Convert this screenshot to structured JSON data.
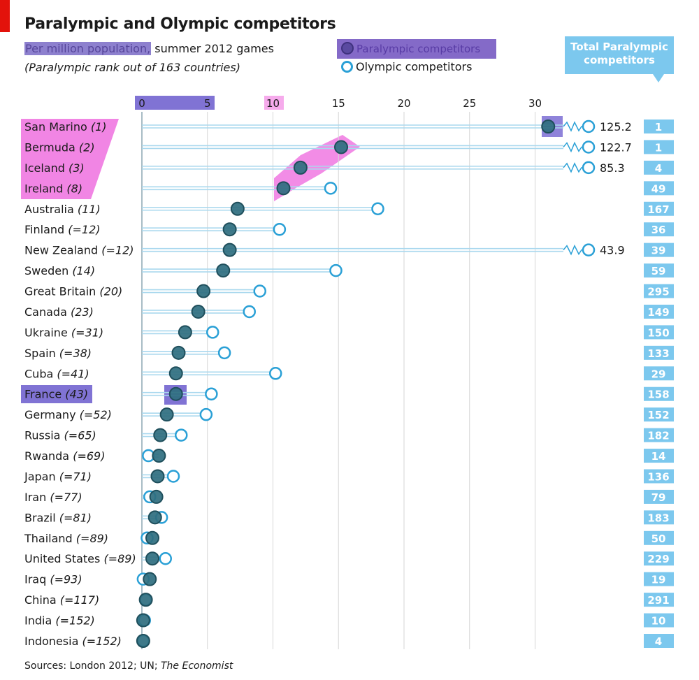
{
  "header": {
    "title": "Paralympic and Olympic competitors",
    "subtitle_highlight": "Per million population,",
    "subtitle_rest": " summer 2012 games",
    "subtitle2": "(Paralympic rank out of 163 countries)",
    "legend_paralympic": "Paralympic competitors",
    "legend_olympic": "Olympic competitors",
    "total_header_line1": "Total Paralympic",
    "total_header_line2": "competitors"
  },
  "footer": {
    "source_prefix": "Sources: London 2012; UN; ",
    "source_italic": "The Economist"
  },
  "colors": {
    "paralympic": "#2f6e7f",
    "olympic": "#2aa0d6",
    "line": "#a9d8ee",
    "total_box": "#7cc8ee",
    "highlight_purple": "#6a5acd",
    "highlight_pink": "#ee66dd"
  },
  "chart_data": {
    "type": "dot-range",
    "xlim": [
      0,
      33
    ],
    "xticks": [
      0,
      5,
      10,
      15,
      20,
      25,
      30
    ],
    "grid": true,
    "legend_position": "top",
    "series": [
      {
        "name": "Paralympic competitors",
        "values": [
          31.0,
          15.2,
          12.1,
          10.8,
          7.3,
          6.7,
          6.7,
          6.2,
          4.7,
          4.3,
          3.3,
          2.8,
          2.6,
          2.6,
          1.9,
          1.4,
          1.3,
          1.2,
          1.1,
          1.0,
          0.8,
          0.8,
          0.6,
          0.3,
          0.1,
          0.1
        ]
      },
      {
        "name": "Olympic competitors",
        "values": [
          125.2,
          122.7,
          85.3,
          14.4,
          18.0,
          10.5,
          43.9,
          14.8,
          9.0,
          8.2,
          5.4,
          6.3,
          10.2,
          5.3,
          4.9,
          3.0,
          0.5,
          2.4,
          0.6,
          1.5,
          0.4,
          1.8,
          0.1,
          0.3,
          0.2,
          0.1
        ]
      }
    ],
    "olympic_broken_axis_labels": [
      "125.2",
      "122.7",
      "85.3",
      "",
      "",
      "",
      "43.9",
      "",
      "",
      "",
      "",
      "",
      "",
      "",
      "",
      "",
      "",
      "",
      "",
      "",
      "",
      "",
      "",
      "",
      "",
      ""
    ],
    "countries": [
      "San Marino",
      "Bermuda",
      "Iceland",
      "Ireland",
      "Australia",
      "Finland",
      "New Zealand",
      "Sweden",
      "Great Britain",
      "Canada",
      "Ukraine",
      "Spain",
      "Cuba",
      "France",
      "Germany",
      "Russia",
      "Rwanda",
      "Japan",
      "Iran",
      "Brazil",
      "Thailand",
      "United States",
      "Iraq",
      "China",
      "India",
      "Indonesia"
    ],
    "ranks": [
      "(1)",
      "(2)",
      "(3)",
      "(8)",
      "(11)",
      "(=12)",
      "(=12)",
      "(14)",
      "(20)",
      "(23)",
      "(=31)",
      "(=38)",
      "(=41)",
      "(43)",
      "(=52)",
      "(=65)",
      "(=69)",
      "(=71)",
      "(=77)",
      "(=81)",
      "(=89)",
      "(=89)",
      "(=93)",
      "(=117)",
      "(=152)",
      "(=152)"
    ],
    "totals": [
      "1",
      "1",
      "4",
      "49",
      "167",
      "36",
      "39",
      "59",
      "295",
      "149",
      "150",
      "133",
      "29",
      "158",
      "152",
      "182",
      "14",
      "136",
      "79",
      "183",
      "50",
      "229",
      "19",
      "291",
      "10",
      "4"
    ]
  }
}
